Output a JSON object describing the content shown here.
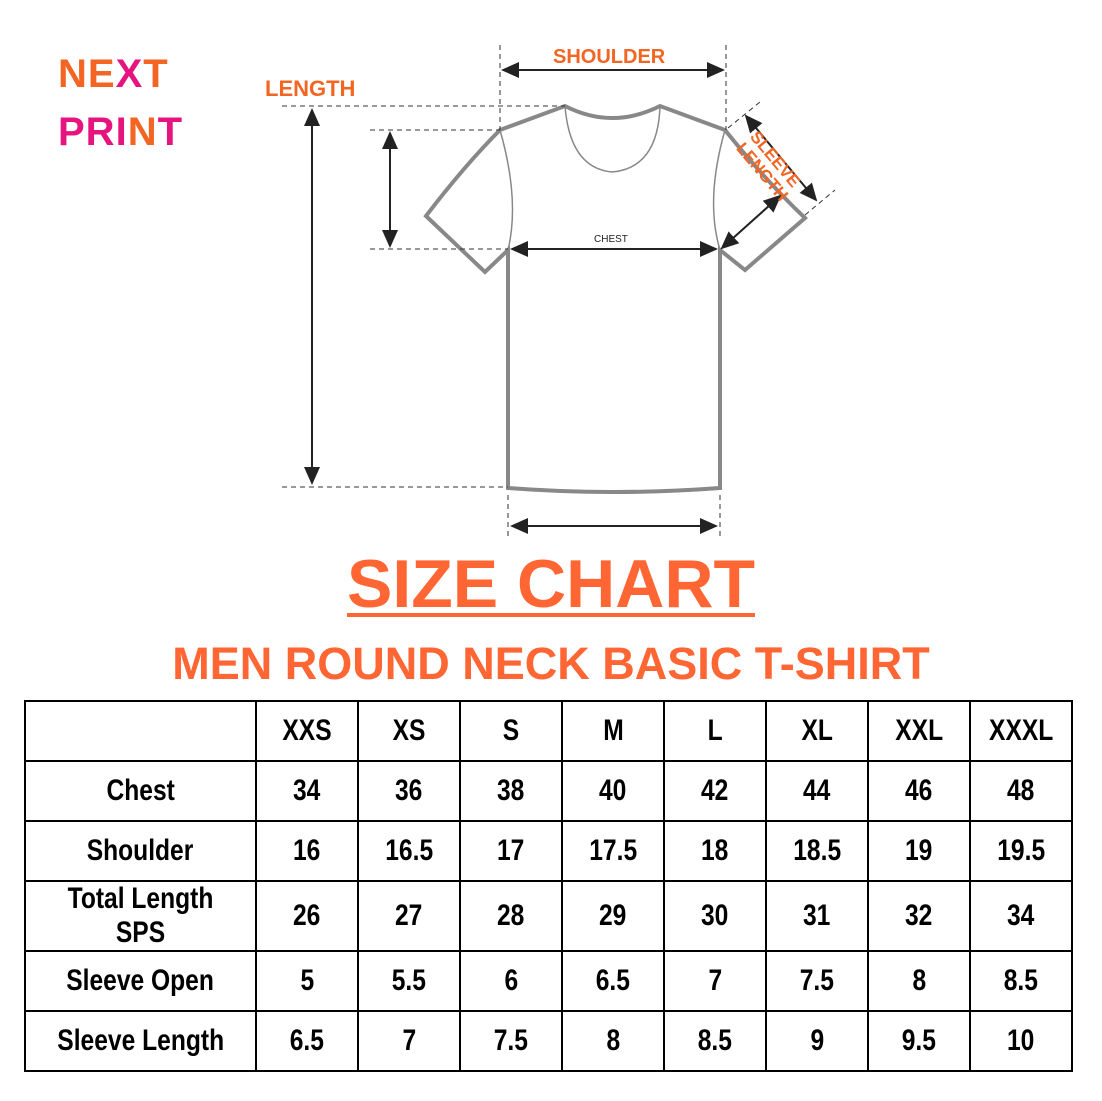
{
  "logo": {
    "line1": "NEXT",
    "line2": "PRINT",
    "colors": {
      "orange": "#f26522",
      "pink": "#e6147f"
    }
  },
  "diagram": {
    "shoulder": "SHOULDER",
    "length": "LENGTH",
    "sleeve_length": "SLEEVE LENGTH",
    "chest": "CHEST"
  },
  "title": "SIZE CHART",
  "subtitle": "MEN ROUND NECK BASIC T-SHIRT",
  "accent": "#ff6633",
  "table": {
    "headers": [
      "XXS",
      "XS",
      "S",
      "M",
      "L",
      "XL",
      "XXL",
      "XXXL"
    ],
    "rows": [
      {
        "label": "Chest",
        "values": [
          "34",
          "36",
          "38",
          "40",
          "42",
          "44",
          "46",
          "48"
        ]
      },
      {
        "label": "Shoulder",
        "values": [
          "16",
          "16.5",
          "17",
          "17.5",
          "18",
          "18.5",
          "19",
          "19.5"
        ]
      },
      {
        "label": "Total Length SPS",
        "values": [
          "26",
          "27",
          "28",
          "29",
          "30",
          "31",
          "32",
          "34"
        ]
      },
      {
        "label": "Sleeve Open",
        "values": [
          "5",
          "5.5",
          "6",
          "6.5",
          "7",
          "7.5",
          "8",
          "8.5"
        ]
      },
      {
        "label": "Sleeve Length",
        "values": [
          "6.5",
          "7",
          "7.5",
          "8",
          "8.5",
          "9",
          "9.5",
          "10"
        ]
      }
    ]
  }
}
